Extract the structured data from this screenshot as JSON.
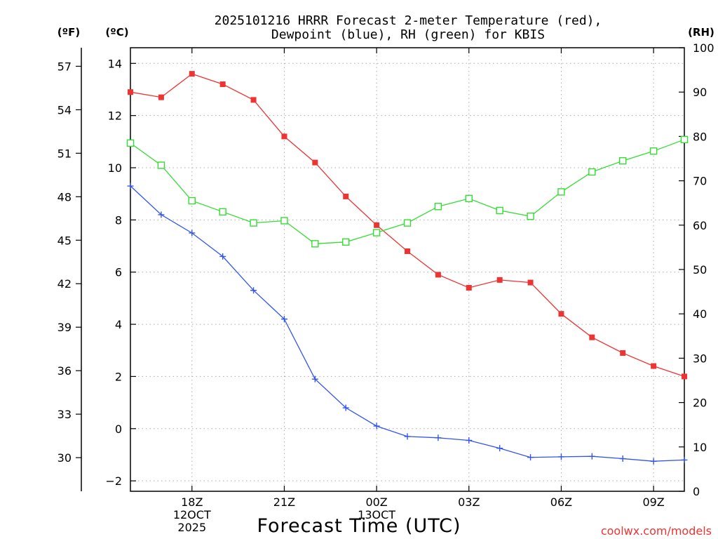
{
  "chart_data": {
    "type": "line",
    "title_line1": "2025101216 HRRR Forecast 2-meter Temperature (red),",
    "title_line2": "Dewpoint (blue), RH (green) for KBIS",
    "xlabel": "Forecast Time (UTC)",
    "unit_f": "(ºF)",
    "unit_c": "(ºC)",
    "unit_rh": "(RH)",
    "watermark": "coolwx.com/models",
    "x_ticks": [
      {
        "idx": 2,
        "lines": [
          "18Z",
          "12OCT",
          "2025"
        ]
      },
      {
        "idx": 5,
        "lines": [
          "21Z"
        ]
      },
      {
        "idx": 8,
        "lines": [
          "00Z",
          "13OCT"
        ]
      },
      {
        "idx": 11,
        "lines": [
          "03Z"
        ]
      },
      {
        "idx": 14,
        "lines": [
          "06Z"
        ]
      },
      {
        "idx": 17,
        "lines": [
          "09Z"
        ]
      }
    ],
    "x_count": 19,
    "ylim_c": [
      -2.4,
      14.6
    ],
    "c_ticks": [
      -2,
      0,
      2,
      4,
      6,
      8,
      10,
      12,
      14
    ],
    "f_ticks": [
      30,
      33,
      36,
      39,
      42,
      45,
      48,
      51,
      54,
      57
    ],
    "ylim_rh": [
      0,
      100
    ],
    "rh_ticks": [
      0,
      10,
      20,
      30,
      40,
      50,
      60,
      70,
      80,
      90,
      100
    ],
    "series": [
      {
        "name": "Temperature",
        "color": "#ee3333",
        "marker": "filled-square",
        "values": [
          12.9,
          12.7,
          13.6,
          13.2,
          12.6,
          11.2,
          10.2,
          8.9,
          7.8,
          6.8,
          5.9,
          5.4,
          5.7,
          5.6,
          4.4,
          3.5,
          2.9,
          2.4,
          2.0
        ]
      },
      {
        "name": "Dewpoint",
        "color": "#3355ee",
        "marker": "plus",
        "values": [
          9.3,
          8.2,
          7.5,
          6.6,
          5.3,
          4.2,
          1.9,
          0.8,
          0.1,
          -0.3,
          -0.35,
          -0.45,
          -0.75,
          -1.1,
          -1.08,
          -1.06,
          -1.15,
          -1.25,
          -1.2
        ]
      },
      {
        "name": "RH",
        "color": "#33dd33",
        "marker": "open-square",
        "axis": "rh",
        "values": [
          78.5,
          73.5,
          65.5,
          63.0,
          60.5,
          61.0,
          55.8,
          56.2,
          58.3,
          60.5,
          64.2,
          66.0,
          63.3,
          62.0,
          67.5,
          72.0,
          74.5,
          76.7,
          79.3
        ]
      }
    ]
  }
}
